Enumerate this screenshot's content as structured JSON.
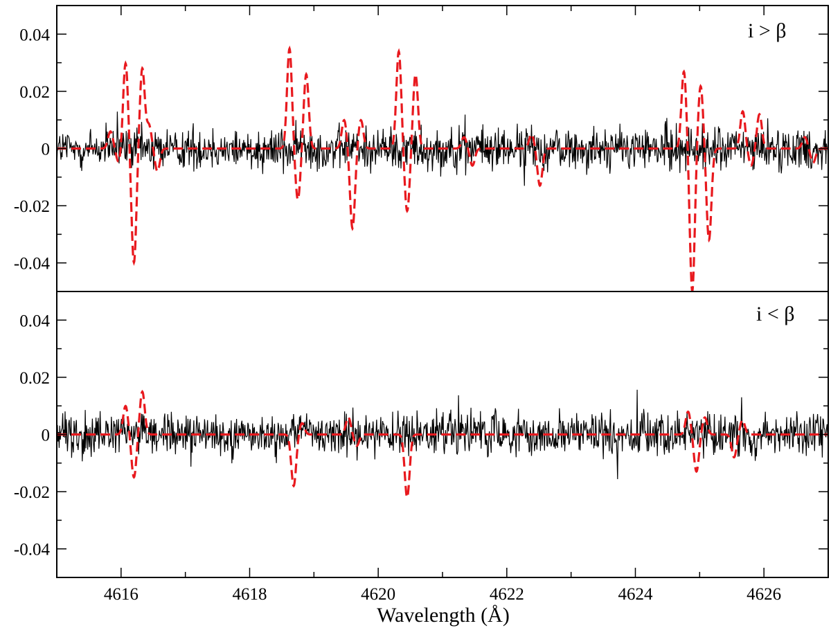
{
  "chart_data": {
    "type": "line",
    "xlabel": "Wavelength (Å)",
    "xlim": [
      4615,
      4627
    ],
    "x_ticks": [
      "4616",
      "4618",
      "4620",
      "4622",
      "4624",
      "4626"
    ],
    "x_tick_values": [
      4616,
      4618,
      4620,
      4622,
      4624,
      4626
    ],
    "panels": [
      {
        "label": "i > β",
        "ylim": [
          -0.05,
          0.05
        ],
        "y_ticks": [
          "0.04",
          "0.02",
          "0",
          "-0.02",
          "-0.04"
        ],
        "y_tick_values": [
          0.04,
          0.02,
          0,
          -0.02,
          -0.04
        ],
        "observed": {
          "noise_amplitude": 0.006,
          "color": "#000000",
          "style": "solid"
        },
        "model": {
          "color": "#e8191e",
          "style": "dashed",
          "features": [
            {
              "x": 4615.9,
              "values": [
                0.006,
                -0.005
              ]
            },
            {
              "x": 4616.2,
              "values": [
                0.03,
                -0.04,
                0.028
              ]
            },
            {
              "x": 4616.5,
              "values": [
                0.008,
                -0.008
              ]
            },
            {
              "x": 4618.75,
              "values": [
                0.035,
                -0.018,
                0.026
              ]
            },
            {
              "x": 4619.6,
              "values": [
                0.01,
                -0.028,
                0.01
              ]
            },
            {
              "x": 4620.45,
              "values": [
                0.034,
                -0.022,
                0.026
              ]
            },
            {
              "x": 4621.4,
              "values": [
                0.004,
                -0.006
              ]
            },
            {
              "x": 4622.45,
              "values": [
                0.005,
                -0.013
              ]
            },
            {
              "x": 4624.95,
              "values": [
                0.027,
                -0.05,
                0.022,
                -0.032
              ]
            },
            {
              "x": 4625.8,
              "values": [
                0.013,
                -0.006,
                0.012
              ]
            },
            {
              "x": 4626.7,
              "values": [
                0.004,
                -0.005
              ]
            }
          ]
        }
      },
      {
        "label": "i < β",
        "ylim": [
          -0.05,
          0.05
        ],
        "y_ticks": [
          "0.04",
          "0.02",
          "0",
          "-0.02",
          "-0.04"
        ],
        "y_tick_values": [
          0.04,
          0.02,
          0,
          -0.02,
          -0.04
        ],
        "observed": {
          "noise_amplitude": 0.006,
          "color": "#000000",
          "style": "solid"
        },
        "model": {
          "color": "#e8191e",
          "style": "dashed",
          "features": [
            {
              "x": 4616.2,
              "values": [
                0.01,
                -0.015,
                0.015
              ]
            },
            {
              "x": 4618.75,
              "values": [
                -0.018,
                0.004
              ]
            },
            {
              "x": 4619.6,
              "values": [
                0.006,
                -0.004
              ]
            },
            {
              "x": 4620.45,
              "values": [
                -0.022
              ]
            },
            {
              "x": 4624.95,
              "values": [
                0.008,
                -0.013,
                0.006
              ]
            },
            {
              "x": 4625.6,
              "values": [
                -0.008,
                0.005
              ]
            }
          ]
        }
      }
    ]
  }
}
